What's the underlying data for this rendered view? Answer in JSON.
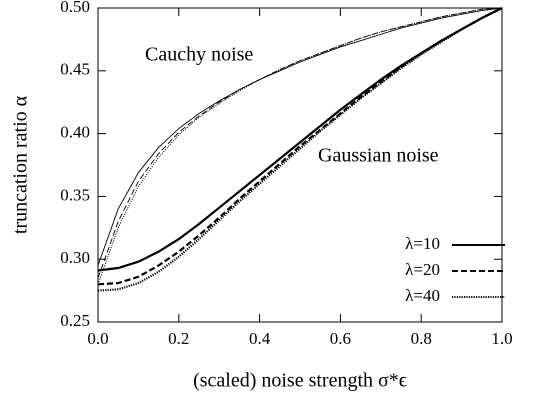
{
  "chart_data": {
    "type": "line",
    "ylabel": "truncation ratio α",
    "xlabel": "(scaled) noise strength σ*ϵ",
    "annotations": [
      "Cauchy noise",
      "Gaussian noise"
    ],
    "x": [
      0,
      0.05,
      0.1,
      0.15,
      0.2,
      0.25,
      0.3,
      0.35,
      0.4,
      0.45,
      0.5,
      0.55,
      0.6,
      0.65,
      0.7,
      0.75,
      0.8,
      0.85,
      0.9,
      0.95,
      1
    ],
    "series": [
      {
        "name": "λ=10",
        "dash": "solid",
        "color": "#000000",
        "gaussian": [
          0.291,
          0.293,
          0.298,
          0.306,
          0.316,
          0.328,
          0.341,
          0.354,
          0.367,
          0.38,
          0.393,
          0.406,
          0.419,
          0.431,
          0.443,
          0.454,
          0.464,
          0.474,
          0.483,
          0.492,
          0.5
        ],
        "cauchy": [
          0.295,
          0.34,
          0.369,
          0.389,
          0.404,
          0.416,
          0.426,
          0.435,
          0.443,
          0.45,
          0.457,
          0.463,
          0.469,
          0.474,
          0.479,
          0.484,
          0.488,
          0.492,
          0.495,
          0.498,
          0.5
        ]
      },
      {
        "name": "λ=20",
        "dash": "dashed",
        "color": "#000000",
        "gaussian": [
          0.28,
          0.281,
          0.286,
          0.295,
          0.306,
          0.319,
          0.333,
          0.348,
          0.362,
          0.376,
          0.39,
          0.403,
          0.416,
          0.429,
          0.441,
          0.453,
          0.464,
          0.474,
          0.483,
          0.492,
          0.5
        ],
        "cauchy": [
          0.285,
          0.33,
          0.362,
          0.384,
          0.401,
          0.414,
          0.425,
          0.435,
          0.443,
          0.451,
          0.458,
          0.464,
          0.47,
          0.476,
          0.481,
          0.485,
          0.489,
          0.493,
          0.496,
          0.499,
          0.5
        ]
      },
      {
        "name": "λ=40",
        "dash": "dotted",
        "color": "#000000",
        "gaussian": [
          0.275,
          0.276,
          0.281,
          0.29,
          0.302,
          0.316,
          0.331,
          0.346,
          0.36,
          0.374,
          0.388,
          0.402,
          0.415,
          0.428,
          0.44,
          0.452,
          0.463,
          0.473,
          0.483,
          0.492,
          0.5
        ],
        "cauchy": [
          0.28,
          0.325,
          0.358,
          0.381,
          0.399,
          0.413,
          0.424,
          0.434,
          0.443,
          0.451,
          0.458,
          0.464,
          0.47,
          0.476,
          0.481,
          0.485,
          0.489,
          0.493,
          0.496,
          0.499,
          0.5
        ]
      }
    ],
    "xlim": [
      0,
      1
    ],
    "xticks": [
      {
        "value": 0,
        "label": "0.0"
      },
      0.2,
      0.4,
      0.6,
      0.8,
      {
        "value": 1,
        "label": "1.0"
      }
    ],
    "ylim": [
      0.25,
      0.5
    ],
    "yticks": [
      0.25,
      {
        "value": 0.3,
        "label": "0.30"
      },
      0.35,
      {
        "value": 0.4,
        "label": "0.40"
      },
      0.45,
      {
        "value": 0.5,
        "label": "0.50"
      }
    ],
    "legend": "lower right"
  }
}
